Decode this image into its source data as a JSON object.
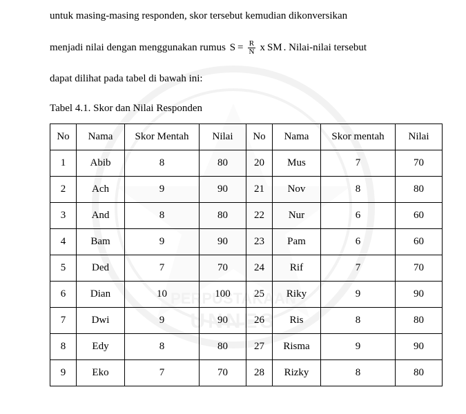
{
  "paragraph": {
    "line1": "untuk  masing-masing  responden,  skor  tersebut  kemudian  dikonversikan",
    "line2a": "menjadi nilai dengan menggunakan rumus ",
    "line2b": ". Nilai-nilai tersebut",
    "line3": "dapat dilihat pada tabel di bawah ini:",
    "formula": {
      "S": "S",
      "eq": "=",
      "R": "R",
      "N": "N",
      "x": "x",
      "SM": "SM"
    }
  },
  "caption": "Tabel 4.1. Skor dan Nilai Responden",
  "table": {
    "headers": [
      "No",
      "Nama",
      "Skor Mentah",
      "Nilai",
      "No",
      "Nama",
      "Skor mentah",
      "Nilai"
    ],
    "rows": [
      {
        "a_no": "1",
        "a_nama": "Abib",
        "a_skor": "8",
        "a_nilai": "80",
        "a_bold": false,
        "b_no": "20",
        "b_nama": "Mus",
        "b_skor": "7",
        "b_nilai": "70",
        "b_bold": false
      },
      {
        "a_no": "2",
        "a_nama": "Ach",
        "a_skor": "9",
        "a_nilai": "90",
        "a_bold": false,
        "b_no": "21",
        "b_nama": "Nov",
        "b_skor": "8",
        "b_nilai": "80",
        "b_bold": false
      },
      {
        "a_no": "3",
        "a_nama": "And",
        "a_skor": "8",
        "a_nilai": "80",
        "a_bold": false,
        "b_no": "22",
        "b_nama": "Nur",
        "b_skor": "6",
        "b_nilai": "60",
        "b_bold": true
      },
      {
        "a_no": "4",
        "a_nama": "Bam",
        "a_skor": "9",
        "a_nilai": "90",
        "a_bold": false,
        "b_no": "23",
        "b_nama": "Pam",
        "b_skor": "6",
        "b_nilai": "60",
        "b_bold": true
      },
      {
        "a_no": "5",
        "a_nama": "Ded",
        "a_skor": "7",
        "a_nilai": "70",
        "a_bold": false,
        "b_no": "24",
        "b_nama": "Rif",
        "b_skor": "7",
        "b_nilai": "70",
        "b_bold": false
      },
      {
        "a_no": "6",
        "a_nama": "Dian",
        "a_skor": "10",
        "a_nilai": "100",
        "a_bold": true,
        "b_no": "25",
        "b_nama": "Riky",
        "b_skor": "9",
        "b_nilai": "90",
        "b_bold": false
      },
      {
        "a_no": "7",
        "a_nama": "Dwi",
        "a_skor": "9",
        "a_nilai": "90",
        "a_bold": false,
        "b_no": "26",
        "b_nama": "Ris",
        "b_skor": "8",
        "b_nilai": "80",
        "b_bold": false
      },
      {
        "a_no": "8",
        "a_nama": "Edy",
        "a_skor": "8",
        "a_nilai": "80",
        "a_bold": false,
        "b_no": "27",
        "b_nama": "Risma",
        "b_skor": "9",
        "b_nilai": "90",
        "b_bold": false
      },
      {
        "a_no": "9",
        "a_nama": "Eko",
        "a_skor": "7",
        "a_nilai": "70",
        "a_bold": false,
        "b_no": "28",
        "b_nama": "Rizky",
        "b_skor": "8",
        "b_nilai": "80",
        "b_bold": false
      }
    ]
  }
}
